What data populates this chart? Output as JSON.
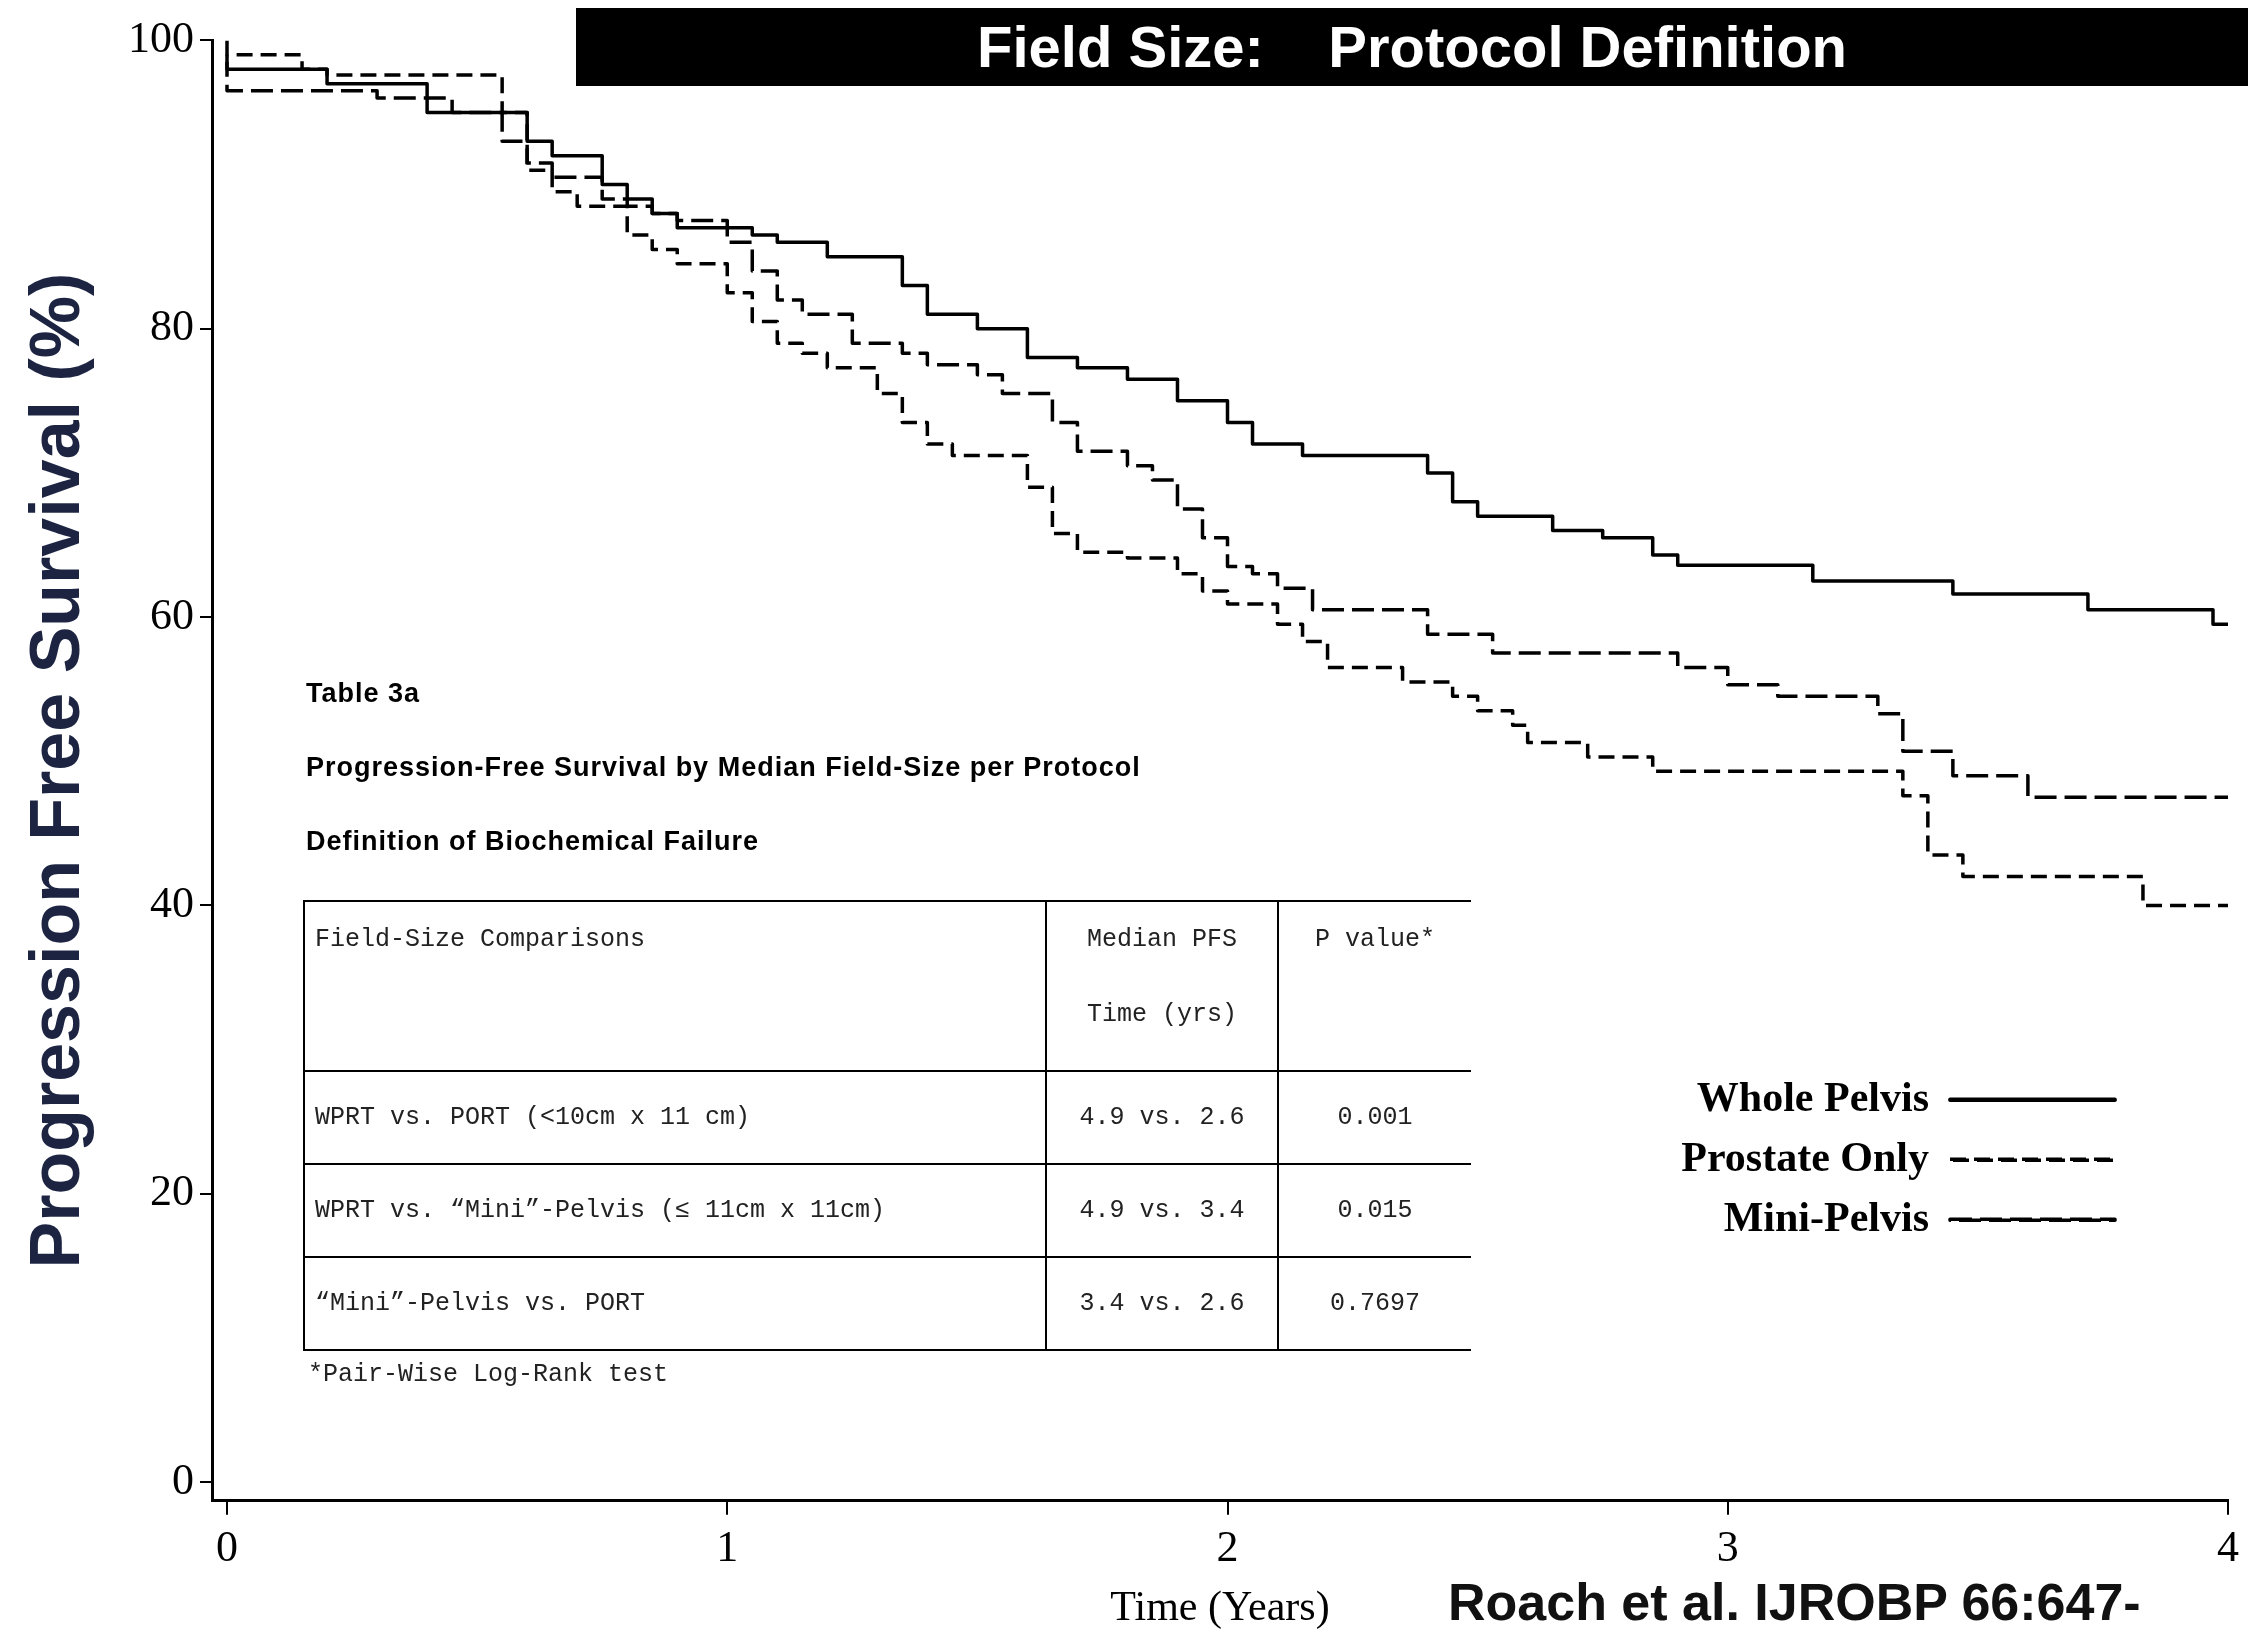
{
  "chart_data": {
    "type": "step",
    "title": "Field Size:    Protocol Definition",
    "xlabel": "Time (Years)",
    "ylabel": "Progression Free Survival (%)",
    "xlim": [
      -0.03,
      4
    ],
    "ylim": [
      -1.3,
      100
    ],
    "xticks": [
      0,
      1,
      2,
      3,
      4
    ],
    "yticks": [
      0,
      20,
      40,
      60,
      80,
      100
    ],
    "grid": false,
    "legend": "bottom right",
    "marker": "none",
    "series": [
      {
        "name": "Whole Pelvis",
        "color": "#000000",
        "line_style": "solid",
        "x": [
          0,
          0.2,
          0.4,
          0.6,
          0.65,
          0.75,
          0.8,
          0.85,
          0.9,
          1.05,
          1.1,
          1.2,
          1.35,
          1.4,
          1.5,
          1.6,
          1.7,
          1.8,
          1.9,
          2.0,
          2.05,
          2.15,
          2.4,
          2.45,
          2.5,
          2.65,
          2.75,
          2.85,
          2.9,
          3.17,
          3.45,
          3.72,
          3.97,
          4.0
        ],
        "values": [
          98.5,
          98,
          97,
          95,
          93,
          92,
          90,
          89,
          88,
          87,
          86.5,
          86,
          85,
          83,
          81,
          80,
          78,
          77.3,
          76.5,
          75,
          73.5,
          72,
          71.2,
          70,
          68,
          67,
          66,
          65.5,
          64.3,
          63.6,
          62.5,
          61.6,
          60.5,
          59.5
        ]
      },
      {
        "name": "Prostate Only",
        "color": "#000000",
        "line_style": "dashed",
        "x": [
          0,
          0.15,
          0.2,
          0.55,
          0.6,
          0.65,
          0.7,
          0.8,
          0.85,
          0.9,
          1.0,
          1.05,
          1.1,
          1.15,
          1.2,
          1.3,
          1.35,
          1.4,
          1.45,
          1.6,
          1.65,
          1.7,
          1.8,
          1.9,
          1.95,
          2.0,
          2.1,
          2.15,
          2.2,
          2.35,
          2.45,
          2.5,
          2.57,
          2.6,
          2.72,
          2.85,
          3.35,
          3.4,
          3.47,
          3.83,
          3.97,
          4.0
        ],
        "values": [
          100,
          99,
          98,
          97.6,
          95,
          91,
          89.5,
          88.5,
          86.5,
          85.5,
          84.5,
          82.5,
          80.5,
          79,
          78.3,
          77.3,
          75.5,
          73.5,
          72,
          71.2,
          69,
          65.8,
          64.5,
          64.1,
          63,
          61.8,
          60.9,
          59.5,
          58.3,
          56.5,
          55.5,
          54.5,
          53.5,
          52.5,
          51.3,
          50.3,
          49.3,
          47.6,
          43.5,
          42,
          40,
          40
        ]
      },
      {
        "name": "Mini-Pelvis",
        "color": "#000000",
        "line_style": "dashed",
        "x": [
          0,
          0.3,
          0.45,
          0.55,
          0.6,
          0.65,
          0.75,
          0.8,
          0.85,
          0.9,
          1.0,
          1.05,
          1.1,
          1.15,
          1.25,
          1.35,
          1.4,
          1.5,
          1.55,
          1.65,
          1.7,
          1.8,
          1.85,
          1.9,
          1.95,
          2.0,
          2.05,
          2.1,
          2.17,
          2.4,
          2.53,
          2.9,
          3.0,
          3.1,
          3.3,
          3.35,
          3.45,
          3.6,
          3.7,
          4.0
        ],
        "values": [
          99,
          96.5,
          96,
          95,
          93,
          91.5,
          90.5,
          89,
          88.5,
          88,
          87.5,
          86,
          84,
          82,
          81,
          79,
          78.3,
          77.5,
          76.8,
          75.5,
          73.5,
          71.5,
          70.5,
          69.5,
          67.5,
          65.5,
          63.5,
          63,
          62,
          60.5,
          58.8,
          57.5,
          56.5,
          55.3,
          54.5,
          53.3,
          50.7,
          49,
          47.5,
          47.5
        ]
      }
    ],
    "annotations": [
      "Table 3a",
      "Progression-Free Survival by Median Field-Size per Protocol",
      "Definition of Biochemical Failure",
      "Field-Size Comparisons",
      "Median PFS Time (yrs)",
      "P value*",
      "WPRT vs. PORT (<10cm x 11 cm)",
      "4.9 vs. 2.6",
      "0.001",
      "WPRT vs. “Mini”-Pelvis (≤ 11cm x 11cm)",
      "4.9 vs. 3.4",
      "0.015",
      "“Mini”-Pelvis vs. PORT",
      "3.4 vs. 2.6",
      "0.7697",
      "*Pair-Wise Log-Rank test",
      "Roach et al. IJROBP 66:647-"
    ]
  }
}
